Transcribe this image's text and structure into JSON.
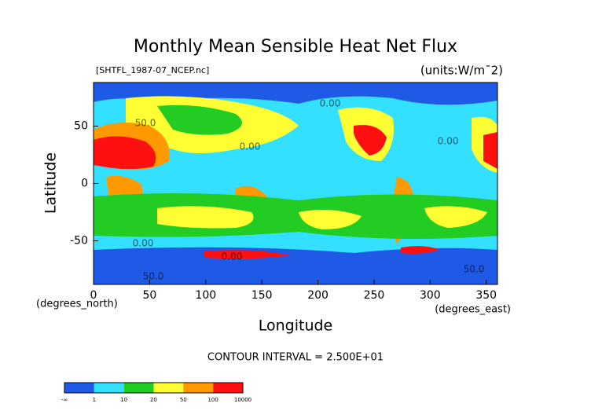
{
  "chart_data": {
    "type": "contour",
    "title": "Monthly Mean Sensible Heat Net Flux",
    "subtitle": "[SHTFL_1987-07_NCEP.nc]",
    "units": "(units:W/m¯2)",
    "xlabel": "Longitude",
    "ylabel": "Latitude",
    "xunits": "(degrees_east)",
    "yunits": "(degrees_north)",
    "xlim": [
      0,
      360
    ],
    "xticks": [
      0,
      50,
      100,
      150,
      200,
      250,
      300,
      350
    ],
    "ylim": [
      -88,
      88
    ],
    "yticks": [
      -50,
      0,
      50
    ],
    "note": "CONTOUR INTERVAL = 2.500E+01",
    "contour_labels": [
      "50.0",
      "0.00",
      "0.00",
      "0.00",
      "0.00",
      "0.00",
      "50.0",
      "50.0"
    ],
    "colorbar": {
      "levels": [
        "-∞",
        1,
        10,
        20,
        50,
        100,
        10000
      ],
      "colors": [
        "#1f5ae6",
        "#33e0ff",
        "#22cc22",
        "#ffff33",
        "#ff9900",
        "#ff1010"
      ]
    }
  }
}
